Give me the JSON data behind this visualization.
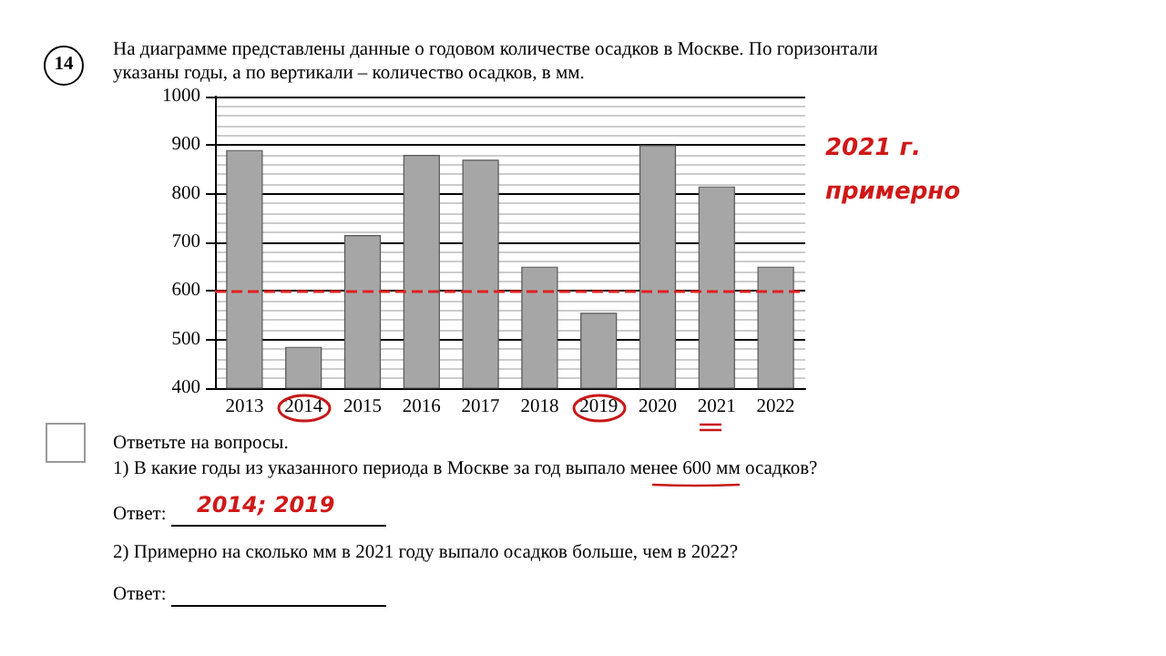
{
  "chart_data": {
    "type": "bar",
    "title": "На диаграмме представлены данные о годовом количестве осадков в Москве. По горизонтали указаны годы, а по вертикали – количество осадков, в мм.",
    "categories": [
      "2013",
      "2014",
      "2015",
      "2016",
      "2017",
      "2018",
      "2019",
      "2020",
      "2021",
      "2022"
    ],
    "values": [
      890,
      485,
      715,
      880,
      870,
      650,
      555,
      900,
      815,
      650
    ],
    "color": "#a6a6a6",
    "ylim": [
      400,
      1000
    ],
    "yticks": [
      400,
      500,
      600,
      700,
      800,
      900,
      1000
    ],
    "grid": "y",
    "ref_lines": [
      {
        "axis": "y",
        "value": 600,
        "color": "#e02020",
        "line_style": "dashed"
      }
    ],
    "annotations": [
      "14",
      "Ответьте на вопросы.",
      "1) В какие годы из указанного периода в Москве за год выпало менее 600 мм осадков?",
      "Ответ:",
      "2014; 2019",
      "2) Примерно на сколько мм в 2021 году выпало осадков больше, чем в 2022?",
      "Ответ:",
      "2021 г. примерно"
    ]
  }
}
